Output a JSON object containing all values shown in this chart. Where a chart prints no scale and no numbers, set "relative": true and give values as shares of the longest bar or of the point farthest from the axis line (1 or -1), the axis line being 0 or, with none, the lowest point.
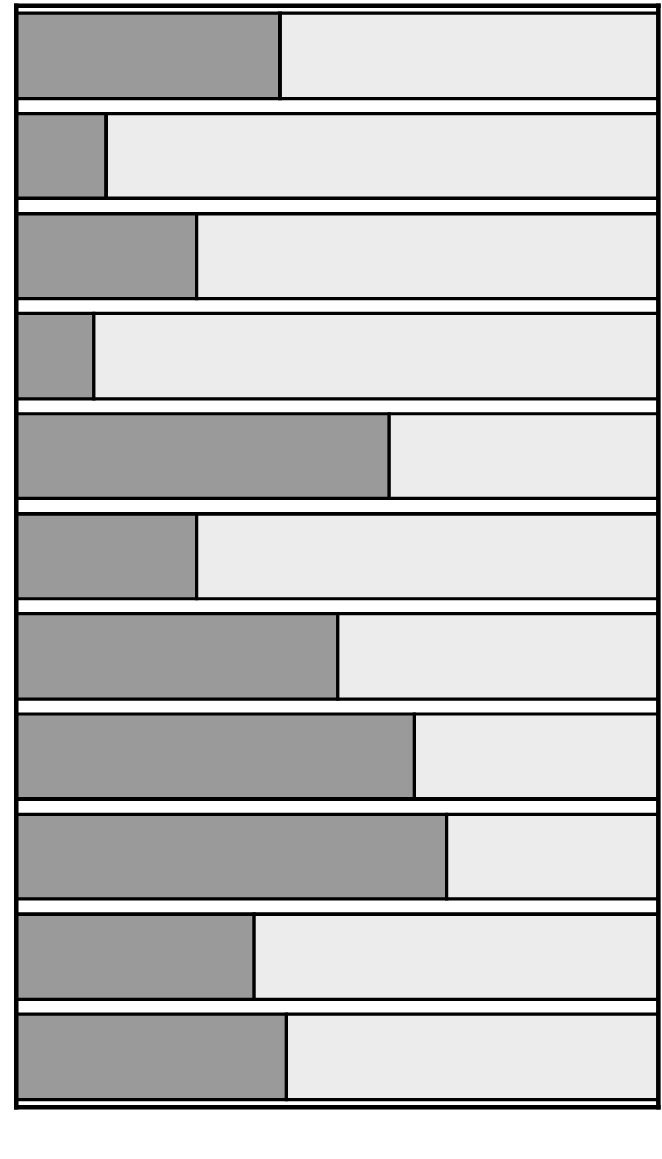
{
  "chart_data": {
    "type": "bar",
    "orientation": "horizontal",
    "stacked": true,
    "relative": true,
    "grid": false,
    "legend": false,
    "categories": [
      null,
      null,
      null,
      null,
      null,
      null,
      null,
      null,
      null,
      null,
      null
    ],
    "series": [
      {
        "color": "#9a9a9a",
        "values": [
          0.41,
          0.14,
          0.28,
          0.12,
          0.58,
          0.28,
          0.5,
          0.62,
          0.67,
          0.37,
          0.42
        ]
      },
      {
        "color": "#ececec",
        "values": [
          0.59,
          0.86,
          0.72,
          0.88,
          0.42,
          0.72,
          0.5,
          0.38,
          0.33,
          0.63,
          0.58
        ]
      }
    ]
  }
}
